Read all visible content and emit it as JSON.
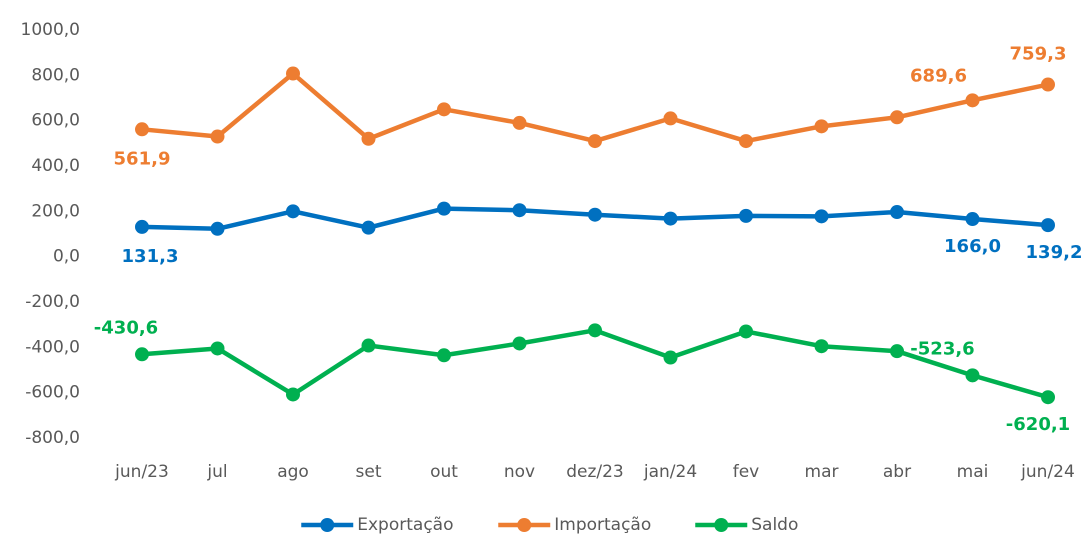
{
  "chart_data": {
    "type": "line",
    "categories": [
      "jun/23",
      "jul",
      "ago",
      "set",
      "out",
      "nov",
      "dez/23",
      "jan/24",
      "fev",
      "mar",
      "abr",
      "mai",
      "jun/24"
    ],
    "series": [
      {
        "name": "Exportação",
        "color": "#0070c0",
        "values": [
          131.3,
          123,
          200,
          128,
          212,
          205,
          185,
          168,
          180,
          178,
          197,
          166.0,
          139.2
        ],
        "value_labels": [
          "131,3",
          null,
          null,
          null,
          null,
          null,
          null,
          null,
          null,
          null,
          null,
          "166,0",
          "139,2"
        ]
      },
      {
        "name": "Importação",
        "color": "#ed7d31",
        "values": [
          561.9,
          530,
          808,
          520,
          650,
          590,
          510,
          610,
          510,
          575,
          615,
          689.6,
          759.3
        ],
        "value_labels": [
          "561,9",
          null,
          null,
          null,
          null,
          null,
          null,
          null,
          null,
          null,
          null,
          "689,6",
          "759,3"
        ]
      },
      {
        "name": "Saldo",
        "color": "#00b050",
        "values": [
          -430.6,
          -405,
          -608,
          -392,
          -435,
          -383,
          -325,
          -445,
          -330,
          -395,
          -417,
          -523.6,
          -620.1
        ],
        "value_labels": [
          "-430,6",
          null,
          null,
          null,
          null,
          null,
          null,
          null,
          null,
          null,
          null,
          "-523,6",
          "-620,1"
        ]
      }
    ],
    "ylim": [
      -800,
      1000
    ],
    "yticks": [
      {
        "value": -800,
        "label": "-800,0"
      },
      {
        "value": -600,
        "label": "-600,0"
      },
      {
        "value": -400,
        "label": "-400,0"
      },
      {
        "value": -200,
        "label": "-200,0"
      },
      {
        "value": 0,
        "label": "0,0"
      },
      {
        "value": 200,
        "label": "200,0"
      },
      {
        "value": 400,
        "label": "400,0"
      },
      {
        "value": 600,
        "label": "600,0"
      },
      {
        "value": 800,
        "label": "800,0"
      },
      {
        "value": 1000,
        "label": "1000,0"
      }
    ],
    "legend": "bottom"
  }
}
